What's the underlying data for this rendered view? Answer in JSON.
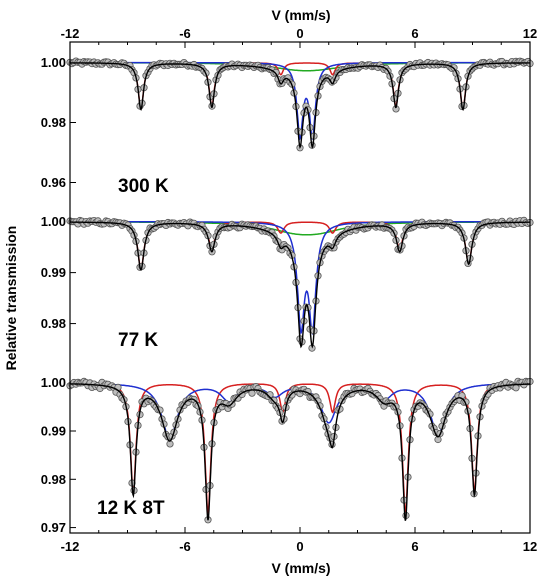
{
  "chart_data": {
    "type": "line",
    "xlabel_top": "V (mm/s)",
    "xlabel_bottom": "V (mm/s)",
    "ylabel": "Relative transmission",
    "xlim": [
      -12,
      12
    ],
    "x_ticks": [
      -12,
      -6,
      0,
      6,
      12
    ],
    "grid": false,
    "colors": {
      "data_points": "#8a8a8a",
      "total_fit": "#000000",
      "sextet": "#d62020",
      "doublet": "#1f2fd0",
      "extra": "#22aa22"
    },
    "panels": [
      {
        "label": "300 K",
        "ylim": [
          0.9525,
          1.0025
        ],
        "y_ticks": [
          "1.00",
          "0.98",
          "0.96"
        ],
        "y_tick_values": [
          1.0,
          0.98,
          0.96
        ],
        "sextet_lines": [
          {
            "x": -8.3,
            "depth": 0.0155
          },
          {
            "x": -4.6,
            "depth": 0.0145
          },
          {
            "x": -1.0,
            "depth": 0.004
          },
          {
            "x": 1.7,
            "depth": 0.004
          },
          {
            "x": 5.0,
            "depth": 0.0145
          },
          {
            "x": 8.5,
            "depth": 0.0155
          }
        ],
        "sextet_width": 0.17,
        "doublet_lines": [
          {
            "x": 0.0,
            "depth": 0.0235
          },
          {
            "x": 0.65,
            "depth": 0.0235
          }
        ],
        "doublet_width": 0.19,
        "extra_lines": [
          {
            "x": -0.2,
            "depth": 0.0015
          },
          {
            "x": 0.9,
            "depth": 0.0015
          }
        ],
        "extra_width": 1.8,
        "point_noise": 0.0006
      },
      {
        "label": "77 K",
        "ylim": [
          0.9705,
          1.0015
        ],
        "y_ticks": [
          "1.00",
          "0.99",
          "0.98"
        ],
        "y_tick_values": [
          1.0,
          0.99,
          0.98
        ],
        "sextet_lines": [
          {
            "x": -8.3,
            "depth": 0.0093
          },
          {
            "x": -4.6,
            "depth": 0.0055
          },
          {
            "x": -1.0,
            "depth": 0.0022
          },
          {
            "x": 1.7,
            "depth": 0.0022
          },
          {
            "x": 5.2,
            "depth": 0.0055
          },
          {
            "x": 8.8,
            "depth": 0.0082
          }
        ],
        "sextet_width": 0.2,
        "doublet_lines": [
          {
            "x": 0.05,
            "depth": 0.0195
          },
          {
            "x": 0.65,
            "depth": 0.0195
          }
        ],
        "doublet_width": 0.22,
        "extra_lines": [
          {
            "x": -0.3,
            "depth": 0.0015
          },
          {
            "x": 1.0,
            "depth": 0.0015
          }
        ],
        "extra_width": 1.6,
        "point_noise": 0.0004
      },
      {
        "label": "12 K  8T",
        "ylim": [
          0.9695,
          1.0018
        ],
        "y_ticks": [
          "1.00",
          "0.99",
          "0.98",
          "0.97"
        ],
        "y_tick_values": [
          1.0,
          0.99,
          0.98,
          0.97
        ],
        "sextet_lines": [
          {
            "x": -8.7,
            "depth": 0.0225
          },
          {
            "x": -4.8,
            "depth": 0.027
          },
          {
            "x": -0.9,
            "depth": 0.006
          },
          {
            "x": 1.7,
            "depth": 0.006
          },
          {
            "x": 5.5,
            "depth": 0.027
          },
          {
            "x": 9.1,
            "depth": 0.0225
          }
        ],
        "sextet_width": 0.18,
        "doublet_lines": [
          {
            "x": -6.8,
            "depth": 0.0115
          },
          {
            "x": -3.7,
            "depth": 0.0035
          },
          {
            "x": -1.3,
            "depth": 0.0025
          },
          {
            "x": 1.5,
            "depth": 0.008
          },
          {
            "x": 4.4,
            "depth": 0.003
          },
          {
            "x": 7.2,
            "depth": 0.0105
          }
        ],
        "doublet_width": 0.5,
        "extra_lines": [],
        "extra_width": 1.0,
        "point_noise": 0.0007
      }
    ]
  }
}
